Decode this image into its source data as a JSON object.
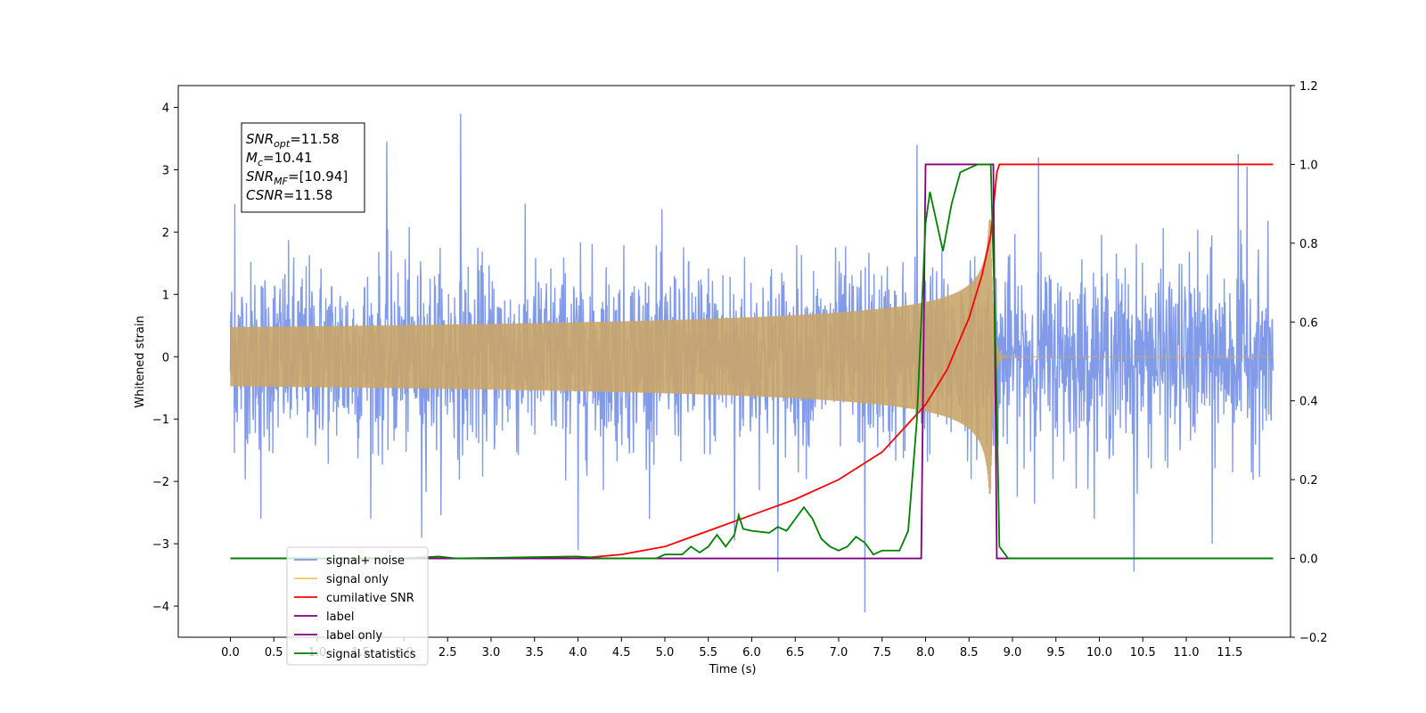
{
  "chart_data": {
    "type": "line",
    "xlabel": "Time (s)",
    "ylabel_left": "Whitened strain",
    "ylabel_right": "",
    "xlim": [
      -0.6,
      12.2
    ],
    "ylim_left": [
      -4.5,
      4.35
    ],
    "ylim_right": [
      -0.2,
      1.2
    ],
    "x_ticks": [
      0.0,
      0.5,
      1.0,
      1.5,
      2.0,
      2.5,
      3.0,
      3.5,
      4.0,
      4.5,
      5.0,
      5.5,
      6.0,
      6.5,
      7.0,
      7.5,
      8.0,
      8.5,
      9.0,
      9.5,
      10.0,
      10.5,
      11.0,
      11.5
    ],
    "x_tick_labels": [
      "0.0",
      "0.5",
      "1.0",
      "1.5",
      "2.0",
      "2.5",
      "3.0",
      "3.5",
      "4.0",
      "4.5",
      "5.0",
      "5.5",
      "6.0",
      "6.5",
      "7.0",
      "7.5",
      "8.0",
      "8.5",
      "9.0",
      "9.5",
      "10.0",
      "10.5",
      "11.0",
      "11.5"
    ],
    "y_ticks_left": [
      -4,
      -3,
      -2,
      -1,
      0,
      1,
      2,
      3,
      4
    ],
    "y_tick_labels_left": [
      "−4",
      "−3",
      "−2",
      "−1",
      "0",
      "1",
      "2",
      "3",
      "4"
    ],
    "y_ticks_right": [
      -0.2,
      0.0,
      0.2,
      0.4,
      0.6,
      0.8,
      1.0,
      1.2
    ],
    "y_tick_labels_right": [
      "−0.2",
      "0.0",
      "0.2",
      "0.4",
      "0.6",
      "0.8",
      "1.0",
      "1.2"
    ],
    "grid": false,
    "legend_position": "lower-left",
    "annotation": {
      "lines": [
        {
          "var": "SNR",
          "sub": "opt",
          "value": "=11.58"
        },
        {
          "var": "M",
          "sub": "c",
          "value": "=10.41"
        },
        {
          "var": "SNR",
          "sub": "MF",
          "value": "=[10.94]"
        },
        {
          "var": "CSNR",
          "sub": "",
          "value": "=11.58"
        }
      ]
    },
    "series": [
      {
        "name": "signal+ noise",
        "axis": "left",
        "color": "#7b96e8",
        "style": "noise",
        "x_range": [
          0.0,
          12.0
        ],
        "envelope": 1.25,
        "spikes": [
          [
            0.05,
            2.45
          ],
          [
            0.35,
            -2.6
          ],
          [
            1.8,
            3.45
          ],
          [
            2.65,
            3.9
          ],
          [
            2.2,
            -2.9
          ],
          [
            4.0,
            -3.1
          ],
          [
            5.8,
            -2.95
          ],
          [
            6.3,
            -3.45
          ],
          [
            7.3,
            -4.1
          ],
          [
            7.9,
            3.4
          ],
          [
            9.3,
            3.2
          ],
          [
            10.4,
            -3.45
          ],
          [
            11.3,
            -3.0
          ],
          [
            11.6,
            3.25
          ],
          [
            11.7,
            3.05
          ]
        ]
      },
      {
        "name": "signal only",
        "axis": "left",
        "color": "#f5c45a",
        "style": "chirp",
        "x_range": [
          0.0,
          12.0
        ],
        "merger_time": 8.75,
        "peak_amplitude": 2.2
      },
      {
        "name": "cumilative SNR",
        "axis": "right",
        "color": "#ff0000",
        "points": [
          [
            0.0,
            0.0
          ],
          [
            4.0,
            0.0
          ],
          [
            4.5,
            0.01
          ],
          [
            5.0,
            0.03
          ],
          [
            5.5,
            0.07
          ],
          [
            6.0,
            0.11
          ],
          [
            6.5,
            0.15
          ],
          [
            7.0,
            0.2
          ],
          [
            7.5,
            0.27
          ],
          [
            8.0,
            0.39
          ],
          [
            8.25,
            0.48
          ],
          [
            8.5,
            0.61
          ],
          [
            8.65,
            0.72
          ],
          [
            8.75,
            0.82
          ],
          [
            8.82,
            0.98
          ],
          [
            8.85,
            1.0
          ],
          [
            12.0,
            1.0
          ]
        ]
      },
      {
        "name": "label",
        "axis": "right",
        "color": "#800080",
        "points": [
          [
            0.0,
            0.0
          ],
          [
            7.95,
            0.0
          ],
          [
            8.0,
            1.0
          ],
          [
            8.78,
            1.0
          ],
          [
            8.82,
            0.0
          ],
          [
            12.0,
            0.0
          ]
        ]
      },
      {
        "name": "label only",
        "axis": "right",
        "color": "#800080",
        "style": "legend-only"
      },
      {
        "name": "signal statistics",
        "axis": "right",
        "color": "#008000",
        "points": [
          [
            0.0,
            0.0
          ],
          [
            2.0,
            0.0
          ],
          [
            2.4,
            0.005
          ],
          [
            2.6,
            0.0
          ],
          [
            4.0,
            0.005
          ],
          [
            4.3,
            0.0
          ],
          [
            4.9,
            0.0
          ],
          [
            5.0,
            0.01
          ],
          [
            5.2,
            0.01
          ],
          [
            5.3,
            0.03
          ],
          [
            5.4,
            0.015
          ],
          [
            5.5,
            0.03
          ],
          [
            5.6,
            0.06
          ],
          [
            5.7,
            0.03
          ],
          [
            5.8,
            0.06
          ],
          [
            5.85,
            0.11
          ],
          [
            5.9,
            0.075
          ],
          [
            6.0,
            0.07
          ],
          [
            6.2,
            0.065
          ],
          [
            6.3,
            0.08
          ],
          [
            6.4,
            0.07
          ],
          [
            6.5,
            0.1
          ],
          [
            6.6,
            0.13
          ],
          [
            6.7,
            0.1
          ],
          [
            6.8,
            0.05
          ],
          [
            6.9,
            0.03
          ],
          [
            7.0,
            0.02
          ],
          [
            7.1,
            0.03
          ],
          [
            7.2,
            0.055
          ],
          [
            7.3,
            0.04
          ],
          [
            7.4,
            0.01
          ],
          [
            7.5,
            0.02
          ],
          [
            7.7,
            0.02
          ],
          [
            7.8,
            0.07
          ],
          [
            7.9,
            0.35
          ],
          [
            8.0,
            0.85
          ],
          [
            8.05,
            0.93
          ],
          [
            8.1,
            0.88
          ],
          [
            8.2,
            0.78
          ],
          [
            8.3,
            0.9
          ],
          [
            8.4,
            0.98
          ],
          [
            8.5,
            0.99
          ],
          [
            8.6,
            1.0
          ],
          [
            8.75,
            1.0
          ],
          [
            8.8,
            0.6
          ],
          [
            8.85,
            0.03
          ],
          [
            8.95,
            0.0
          ],
          [
            12.0,
            0.0
          ]
        ]
      }
    ]
  }
}
